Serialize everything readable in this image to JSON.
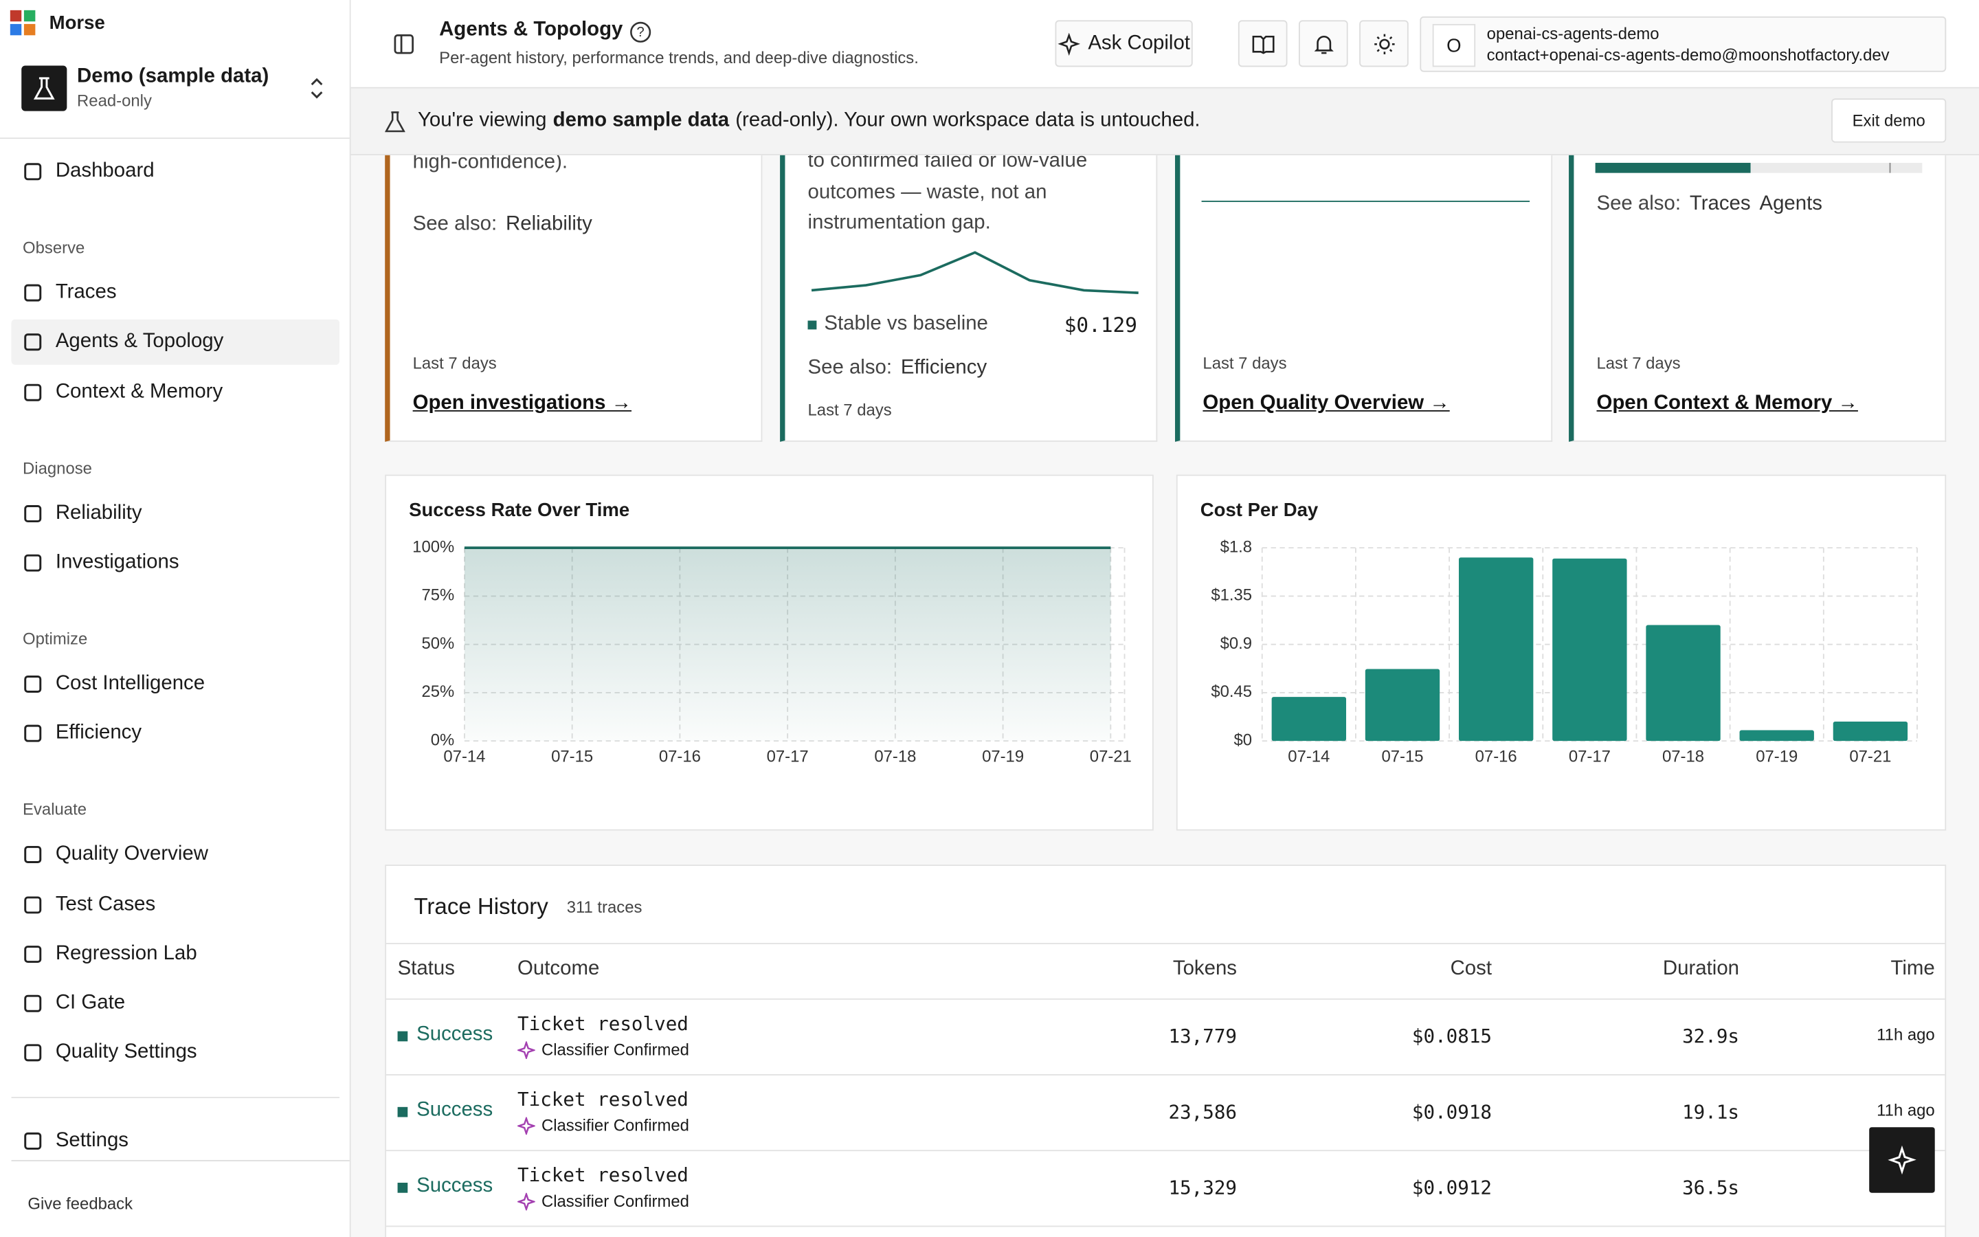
{
  "sidebar": {
    "brand": "Morse",
    "workspace": {
      "name": "Demo (sample data)",
      "role": "Read-only"
    },
    "dashboard": "Dashboard",
    "sections": [
      {
        "title": "Observe",
        "items": [
          {
            "label": "Traces"
          },
          {
            "label": "Agents & Topology",
            "active": true
          },
          {
            "label": "Context & Memory"
          }
        ]
      },
      {
        "title": "Diagnose",
        "items": [
          {
            "label": "Reliability"
          },
          {
            "label": "Investigations"
          }
        ]
      },
      {
        "title": "Optimize",
        "items": [
          {
            "label": "Cost Intelligence"
          },
          {
            "label": "Efficiency"
          }
        ]
      },
      {
        "title": "Evaluate",
        "items": [
          {
            "label": "Quality Overview"
          },
          {
            "label": "Test Cases"
          },
          {
            "label": "Regression Lab"
          },
          {
            "label": "CI Gate"
          },
          {
            "label": "Quality Settings"
          }
        ]
      }
    ],
    "settings": "Settings",
    "feedback": "Give feedback"
  },
  "header": {
    "title": "Agents & Topology",
    "subtitle": "Per-agent history, performance trends, and deep-dive diagnostics.",
    "copilot": "Ask Copilot",
    "user": {
      "initial": "O",
      "name": "openai-cs-agents-demo",
      "email": "contact+openai-cs-agents-demo@moonshotfactory.dev"
    }
  },
  "banner": {
    "before": "You're viewing",
    "bold": "demo sample data",
    "after": "(read-only). Your own workspace data is untouched.",
    "button": "Exit demo"
  },
  "cards": [
    {
      "color": "#b0661f",
      "text": "high-confidence).",
      "see_also_label": "See also:",
      "see_also": [
        "Reliability"
      ],
      "period": "Last 7 days",
      "link": "Open investigations →"
    },
    {
      "color": "#1b6b5f",
      "text": "to confirmed failed or low-value outcomes — waste, not an instrumentation gap.",
      "sparkline": [
        0.118,
        0.12,
        0.124,
        0.133,
        0.122,
        0.118,
        0.117
      ],
      "trend": "Stable vs baseline",
      "value": "$0.129",
      "see_also_label": "See also:",
      "see_also": [
        "Efficiency"
      ],
      "period": "Last 7 days"
    },
    {
      "color": "#1b6b5f",
      "period": "Last 7 days",
      "link": "Open Quality Overview →"
    },
    {
      "color": "#1b6b5f",
      "progress": 47.5,
      "marker": 90,
      "see_also_label": "See also:",
      "see_also": [
        "Traces",
        "Agents"
      ],
      "period": "Last 7 days",
      "link": "Open Context & Memory →"
    }
  ],
  "success_chart": {
    "type": "area",
    "title": "Success Rate Over Time",
    "color": "#1b6b5f",
    "categories": [
      "07-14",
      "07-15",
      "07-16",
      "07-17",
      "07-18",
      "07-19",
      "07-21"
    ],
    "values": [
      100,
      100,
      100,
      100,
      100,
      100,
      100
    ],
    "ylim": [
      0,
      100
    ],
    "yticks": [
      {
        "value": 0,
        "label": "0%"
      },
      {
        "value": 25,
        "label": "25%"
      },
      {
        "value": 50,
        "label": "50%"
      },
      {
        "value": 75,
        "label": "75%"
      },
      {
        "value": 100,
        "label": "100%"
      }
    ],
    "grid": true
  },
  "cost_chart": {
    "type": "bar",
    "title": "Cost Per Day",
    "color": "#1c8a7a",
    "categories": [
      "07-14",
      "07-15",
      "07-16",
      "07-17",
      "07-18",
      "07-19",
      "07-21"
    ],
    "values": [
      0.41,
      0.67,
      1.71,
      1.7,
      1.08,
      0.1,
      0.18
    ],
    "ylim": [
      0,
      1.8
    ],
    "yticks": [
      {
        "value": 0,
        "label": "$0"
      },
      {
        "value": 0.45,
        "label": "$0.45"
      },
      {
        "value": 0.9,
        "label": "$0.9"
      },
      {
        "value": 1.35,
        "label": "$1.35"
      },
      {
        "value": 1.8,
        "label": "$1.8"
      }
    ],
    "grid": true
  },
  "table": {
    "title": "Trace History",
    "count": "311 traces",
    "columns": [
      "Status",
      "Outcome",
      "Tokens",
      "Cost",
      "Duration",
      "Time"
    ],
    "rows": [
      {
        "status": "Success",
        "outcome": "Ticket resolved",
        "tag": "Classifier Confirmed",
        "tokens": "13,779",
        "cost": "$0.0815",
        "duration": "32.9s",
        "time": "11h ago"
      },
      {
        "status": "Success",
        "outcome": "Ticket resolved",
        "tag": "Classifier Confirmed",
        "tokens": "23,586",
        "cost": "$0.0918",
        "duration": "19.1s",
        "time": "11h ago"
      },
      {
        "status": "Success",
        "outcome": "Ticket resolved",
        "tag": "Classifier Confirmed",
        "tokens": "15,329",
        "cost": "$0.0912",
        "duration": "36.5s"
      }
    ]
  }
}
